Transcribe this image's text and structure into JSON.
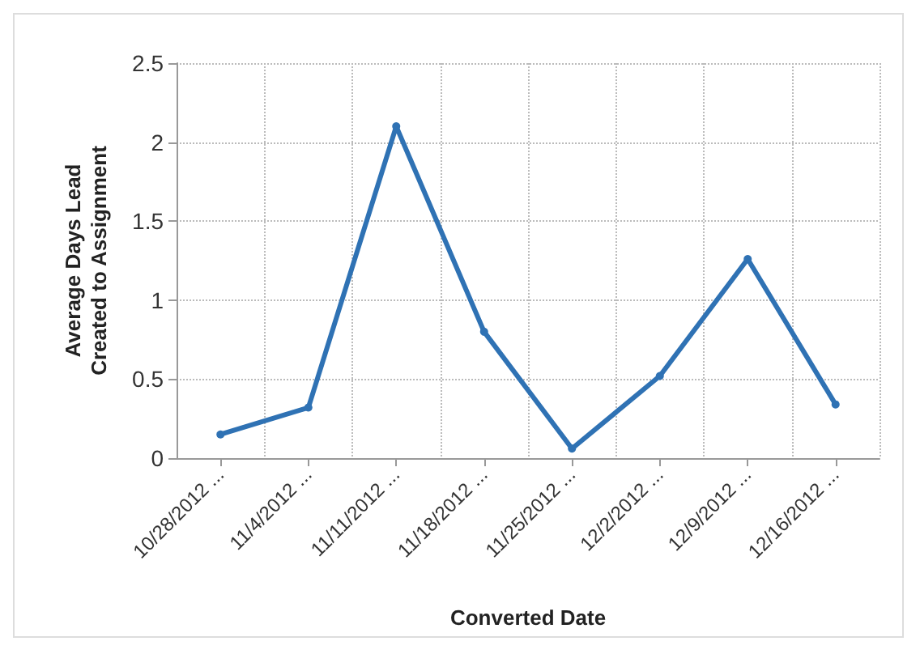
{
  "chart_data": {
    "type": "line",
    "xlabel": "Converted Date",
    "ylabel": "Average Days Lead\nCreated to Assignment",
    "categories": [
      "10/28/2012 ...",
      "11/4/2012 ...",
      "11/11/2012 ...",
      "11/18/2012 ...",
      "11/25/2012 ...",
      "12/2/2012 ...",
      "12/9/2012 ...",
      "12/16/2012 ..."
    ],
    "series": [
      {
        "color": "#2f72b4",
        "values": [
          0.15,
          0.32,
          2.1,
          0.8,
          0.06,
          0.52,
          1.26,
          0.34
        ]
      }
    ],
    "ylim": [
      0,
      2.5
    ],
    "yticks": [
      0,
      0.5,
      1,
      1.5,
      2,
      2.5
    ],
    "grid": true,
    "marker": "circle",
    "line_style": "solid"
  }
}
